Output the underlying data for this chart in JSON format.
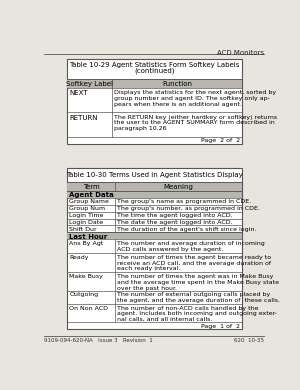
{
  "page_header": "ACD Monitors",
  "table1_title_line1": "Table 10-29 Agent Statistics Form Softkey Labels",
  "table1_title_line2": "(continued)",
  "table1_headers": [
    "Softkey Label",
    "Function"
  ],
  "table1_rows": [
    [
      "NEXT",
      "Displays the statistics for the next agent, sorted by\ngroup number and agent ID. The softkey only ap-\npears when there is an additional agent."
    ],
    [
      "RETURN",
      "The RETURN key (either hardkey or softkey) returns\nthe user to the AGENT SUMMARY form described in\nparagraph 10.26"
    ]
  ],
  "table1_footer": "Page  2 of  2",
  "table2_title": "Table 10-30 Terms Used in Agent Statistics Display",
  "table2_headers": [
    "Term",
    "Meaning"
  ],
  "table2_section1": "Agent Data",
  "table2_rows1": [
    [
      "Group Name",
      "The group's name as programmed in CDE."
    ],
    [
      "Group Num",
      "The group's number, as programmed in CDE."
    ],
    [
      "Login Time",
      "The time the agent logged into ACD."
    ],
    [
      "Login Date",
      "The date the agent logged into ACD."
    ],
    [
      "Shift Dur",
      "The duration of the agent's shift since login."
    ]
  ],
  "table2_section2": "Last Hour",
  "table2_rows2": [
    [
      "Ans By Agt",
      "The number and average duration of incoming\nACD calls answered by the agent."
    ],
    [
      "Ready",
      "The number of times the agent became ready to\nreceive an ACD call, and the average duration of\neach ready interval."
    ],
    [
      "Make Busy",
      "The number of times the agent was in Make Busy\nand the average time spent in the Make Busy state\nover the past hour."
    ],
    [
      "Outgoing",
      "The number of external outgoing calls placed by\nthe agent, and the average duration of  these calls."
    ],
    [
      "On Non ACD",
      "The number of non-ACD calls handled by the\nagent. Includes both incoming and outgoing exter-\nnal calls, and all internal calls."
    ]
  ],
  "table2_footer": "Page  1 of  2",
  "footer_left": "9109-094-620-NA   Issue 3   Revision  1",
  "footer_right": "620  10-35",
  "bg_color": "#e8e4de",
  "table_bg": "#ffffff",
  "header_bg": "#b8b4ae",
  "section_bg": "#b8b4ae"
}
